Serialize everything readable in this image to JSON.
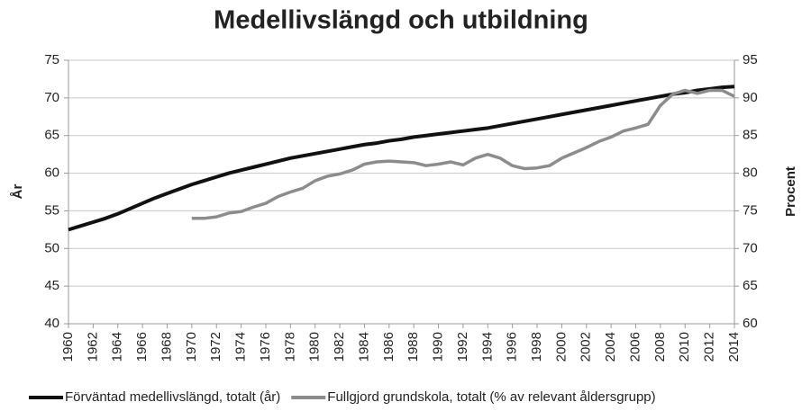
{
  "chart_data": {
    "type": "line",
    "title": "Medellivslängd och utbildning",
    "y_label": "År",
    "y2_label": "Procent",
    "x": [
      1960,
      1961,
      1962,
      1963,
      1964,
      1965,
      1966,
      1967,
      1968,
      1969,
      1970,
      1971,
      1972,
      1973,
      1974,
      1975,
      1976,
      1977,
      1978,
      1979,
      1980,
      1981,
      1982,
      1983,
      1984,
      1985,
      1986,
      1987,
      1988,
      1989,
      1990,
      1991,
      1992,
      1993,
      1994,
      1995,
      1996,
      1997,
      1998,
      1999,
      2000,
      2001,
      2002,
      2003,
      2004,
      2005,
      2006,
      2007,
      2008,
      2009,
      2010,
      2011,
      2012,
      2013,
      2014
    ],
    "xlim": [
      1960,
      2014
    ],
    "xticks": [
      1960,
      1962,
      1964,
      1966,
      1968,
      1970,
      1972,
      1974,
      1976,
      1978,
      1980,
      1982,
      1984,
      1986,
      1988,
      1990,
      1992,
      1994,
      1996,
      1998,
      2000,
      2002,
      2004,
      2006,
      2008,
      2010,
      2012,
      2014
    ],
    "ylim": [
      40,
      75
    ],
    "yticks": [
      40,
      45,
      50,
      55,
      60,
      65,
      70,
      75
    ],
    "y2lim": [
      60,
      95
    ],
    "y2ticks": [
      60,
      65,
      70,
      75,
      80,
      85,
      90,
      95
    ],
    "grid": true,
    "legend": "bottom",
    "series": [
      {
        "name": "Förväntad medellivslängd, totalt (år)",
        "color": "#111111",
        "values": [
          52.5,
          53.0,
          53.5,
          54.0,
          54.6,
          55.3,
          56.0,
          56.7,
          57.3,
          57.9,
          58.5,
          59.0,
          59.5,
          60.0,
          60.4,
          60.8,
          61.2,
          61.6,
          62.0,
          62.3,
          62.6,
          62.9,
          63.2,
          63.5,
          63.8,
          64.0,
          64.3,
          64.5,
          64.8,
          65.0,
          65.2,
          65.4,
          65.6,
          65.8,
          66.0,
          66.3,
          66.6,
          66.9,
          67.2,
          67.5,
          67.8,
          68.1,
          68.4,
          68.7,
          69.0,
          69.3,
          69.6,
          69.9,
          70.2,
          70.5,
          70.7,
          71.0,
          71.2,
          71.4,
          71.5
        ]
      },
      {
        "name": "Fullgjord grundskola, totalt (% av relevant åldersgrupp)",
        "color": "#8c8c8c",
        "axis": "y2",
        "values": [
          null,
          null,
          null,
          null,
          null,
          null,
          null,
          null,
          null,
          null,
          74.0,
          74.0,
          74.2,
          74.7,
          74.9,
          75.5,
          76.0,
          76.9,
          77.5,
          78.0,
          79.0,
          79.6,
          79.9,
          80.4,
          81.2,
          81.5,
          81.6,
          81.5,
          81.4,
          81.0,
          81.2,
          81.5,
          81.1,
          82.0,
          82.5,
          82.0,
          81.0,
          80.6,
          80.7,
          81.0,
          82.0,
          82.7,
          83.4,
          84.2,
          84.8,
          85.6,
          86.0,
          86.5,
          89.0,
          90.5,
          91.0,
          90.6,
          91.0,
          91.0,
          90.2
        ]
      }
    ]
  }
}
